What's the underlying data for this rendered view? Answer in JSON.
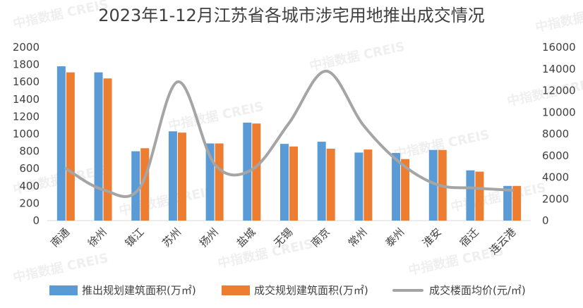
{
  "chart_data": {
    "type": "bar",
    "title": "2023年1-12月江苏省各城市涉宅用地推出成交情况",
    "categories": [
      "南通",
      "徐州",
      "镇江",
      "苏州",
      "扬州",
      "盐城",
      "无锡",
      "南京",
      "常州",
      "泰州",
      "淮安",
      "宿迁",
      "连云港"
    ],
    "series": [
      {
        "name": "推出规划建筑面积(万㎡)",
        "kind": "bar",
        "axis": "left",
        "color": "#5b9bd5",
        "values": [
          1780,
          1710,
          800,
          1030,
          890,
          1130,
          885,
          910,
          785,
          780,
          815,
          580,
          400
        ]
      },
      {
        "name": "成交规划建筑面积(万㎡)",
        "kind": "bar",
        "axis": "left",
        "color": "#ed7d31",
        "values": [
          1710,
          1640,
          835,
          1015,
          890,
          1120,
          855,
          830,
          820,
          710,
          815,
          565,
          400
        ]
      },
      {
        "name": "成交楼面均价(元/㎡)",
        "kind": "line",
        "smooth": true,
        "axis": "right",
        "color": "#a5a5a5",
        "values": [
          4800,
          2850,
          3100,
          12800,
          5200,
          4700,
          9000,
          13800,
          8800,
          5300,
          3300,
          3000,
          2800
        ]
      }
    ],
    "y_left": {
      "min": 0,
      "max": 2000,
      "step": 200
    },
    "y_right": {
      "min": 0,
      "max": 16000,
      "step": 2000
    },
    "legend_position": "bottom",
    "grid": false,
    "watermark": "中指数据 CREIS"
  }
}
